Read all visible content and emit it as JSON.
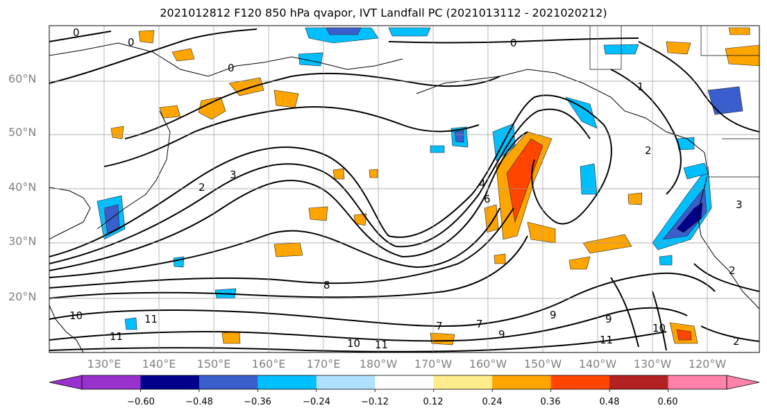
{
  "title": "2021012812 F120 850 hPa qvapor, IVT Landfall PC (2021013112 - 2021020212)",
  "lat_labels": [
    "60°N",
    "50°N",
    "40°N",
    "30°N",
    "20°N"
  ],
  "lon_labels": [
    "130°E",
    "140°E",
    "150°E",
    "160°E",
    "170°E",
    "180°W",
    "170°W",
    "160°W",
    "150°W",
    "140°W",
    "130°W",
    "120°W"
  ],
  "colorbar": {
    "colors": [
      "#9932cc",
      "#00008b",
      "#3a5fcd",
      "#00bfff",
      "#b0e2ff",
      "#ffffff",
      "#ffec8b",
      "#ffa500",
      "#ff4500",
      "#b22222",
      "#ff82ab"
    ],
    "tick_labels": [
      "−0.60",
      "−0.48",
      "−0.36",
      "−0.24",
      "−0.12",
      "0.12",
      "0.24",
      "0.36",
      "0.48",
      "0.60"
    ],
    "extend": "both"
  },
  "contour_labels": [
    "0",
    "0",
    "0",
    "0",
    "1",
    "2",
    "2",
    "3",
    "4",
    "6",
    "7",
    "7",
    "8",
    "9",
    "9",
    "10",
    "10",
    "11",
    "11",
    "11",
    "11",
    "2",
    "3",
    "9",
    "10",
    "2"
  ]
}
